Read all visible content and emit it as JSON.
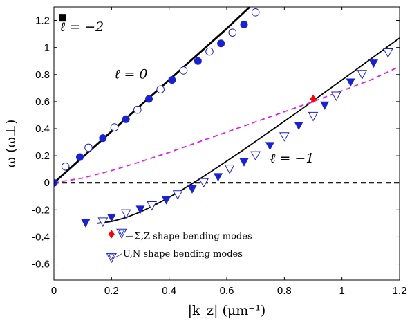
{
  "chart_data": {
    "type": "scatter",
    "title": "",
    "xlabel": "|k_z| (μm⁻¹)",
    "ylabel": "ω (ω⊥)",
    "xlim": [
      0,
      1.2
    ],
    "ylim": [
      -0.72,
      1.3
    ],
    "x_ticks": [
      "0",
      "0.2",
      "0.4",
      "0.6",
      "0.8",
      "1",
      "1.2"
    ],
    "y_ticks": [
      "-0.6",
      "-0.4",
      "-0.2",
      "0",
      "0.2",
      "0.4",
      "0.6",
      "0.8",
      "1",
      "1.2"
    ],
    "x_tick_values": [
      0,
      0.2,
      0.4,
      0.6,
      0.8,
      1.0,
      1.2
    ],
    "y_tick_values": [
      -0.6,
      -0.4,
      -0.2,
      0,
      0.2,
      0.4,
      0.6,
      0.8,
      1.0,
      1.2
    ],
    "grid": false,
    "annotations": [
      {
        "text": "ℓ = −2",
        "x": 0.02,
        "y": 1.12
      },
      {
        "text": "ℓ = 0",
        "x": 0.21,
        "y": 0.77
      },
      {
        "text": "ℓ = −1",
        "x": 0.75,
        "y": 0.15
      }
    ],
    "legend_entries": [
      {
        "label": "Σ,Z shape bending modes",
        "marker": "triangle-down-open-inner"
      },
      {
        "label": "U,N shape bending modes",
        "marker": "triangle-down-open-inner"
      }
    ],
    "series": [
      {
        "style": "line",
        "color": "#000000",
        "dash": "solid",
        "width": 2.8,
        "x": [
          0,
          0.1,
          0.2,
          0.3,
          0.4,
          0.5,
          0.6,
          0.68
        ],
        "y": [
          0,
          0.19,
          0.38,
          0.57,
          0.76,
          0.95,
          1.14,
          1.3
        ]
      },
      {
        "style": "line",
        "color": "#000000",
        "dash": "solid",
        "width": 1.8,
        "x": [
          0.15,
          0.2,
          0.25,
          0.3,
          0.35,
          0.4,
          0.45,
          0.5,
          0.55,
          0.6,
          0.65,
          0.7,
          0.75,
          0.8,
          0.85,
          0.9,
          0.95,
          1.0,
          1.05,
          1.1,
          1.15,
          1.2
        ],
        "y": [
          -0.3,
          -0.286,
          -0.257,
          -0.216,
          -0.165,
          -0.108,
          -0.046,
          0.02,
          0.089,
          0.16,
          0.232,
          0.306,
          0.38,
          0.455,
          0.53,
          0.606,
          0.683,
          0.76,
          0.837,
          0.915,
          0.993,
          1.07
        ]
      },
      {
        "style": "line",
        "color": "#000000",
        "dash": "dashed",
        "width": 2.2,
        "x": [
          0,
          1.2
        ],
        "y": [
          0,
          0
        ]
      },
      {
        "style": "line",
        "color": "#e020e0",
        "dash": "dashed",
        "width": 1.8,
        "x": [
          0,
          0.1,
          0.2,
          0.3,
          0.4,
          0.5,
          0.6,
          0.7,
          0.8,
          0.9,
          1.0,
          1.1,
          1.2
        ],
        "y": [
          0,
          0.035,
          0.09,
          0.155,
          0.225,
          0.3,
          0.375,
          0.45,
          0.525,
          0.6,
          0.68,
          0.76,
          0.86
        ]
      },
      {
        "style": "marker",
        "marker": "square",
        "color": "#000000",
        "x": [
          0.03
        ],
        "y": [
          1.22
        ]
      },
      {
        "style": "marker",
        "marker": "circle-filled",
        "color": "#1a22d0",
        "x": [
          0,
          0.09,
          0.17,
          0.25,
          0.33,
          0.41,
          0.5,
          0.58,
          0.66
        ],
        "y": [
          0,
          0.19,
          0.33,
          0.47,
          0.62,
          0.76,
          0.9,
          1.03,
          1.17
        ]
      },
      {
        "style": "marker",
        "marker": "circle-open",
        "color": "#1a22d0",
        "x": [
          0.04,
          0.12,
          0.21,
          0.29,
          0.37,
          0.45,
          0.54,
          0.62,
          0.7
        ],
        "y": [
          0.12,
          0.26,
          0.41,
          0.54,
          0.69,
          0.83,
          0.97,
          1.11,
          1.26
        ]
      },
      {
        "style": "marker",
        "marker": "triangle-down-filled",
        "color": "#1a22d0",
        "x": [
          0.11,
          0.2,
          0.3,
          0.39,
          0.48,
          0.57,
          0.66,
          0.75,
          0.85,
          0.94,
          1.03,
          1.11
        ],
        "y": [
          -0.3,
          -0.26,
          -0.2,
          -0.13,
          -0.05,
          0.04,
          0.15,
          0.27,
          0.42,
          0.57,
          0.74,
          0.88
        ]
      },
      {
        "style": "marker",
        "marker": "triangle-down-open",
        "color": "#1a22d0",
        "x": [
          0.17,
          0.25,
          0.34,
          0.43,
          0.52,
          0.61,
          0.7,
          0.8,
          0.9,
          0.98,
          1.07,
          1.16
        ],
        "y": [
          -0.29,
          -0.23,
          -0.17,
          -0.09,
          0.0,
          0.1,
          0.2,
          0.34,
          0.49,
          0.64,
          0.8,
          0.96
        ]
      },
      {
        "style": "marker",
        "marker": "diamond",
        "color": "#ff0000",
        "x": [
          0.2,
          0.9
        ],
        "y": [
          -0.38,
          0.62
        ]
      }
    ]
  }
}
